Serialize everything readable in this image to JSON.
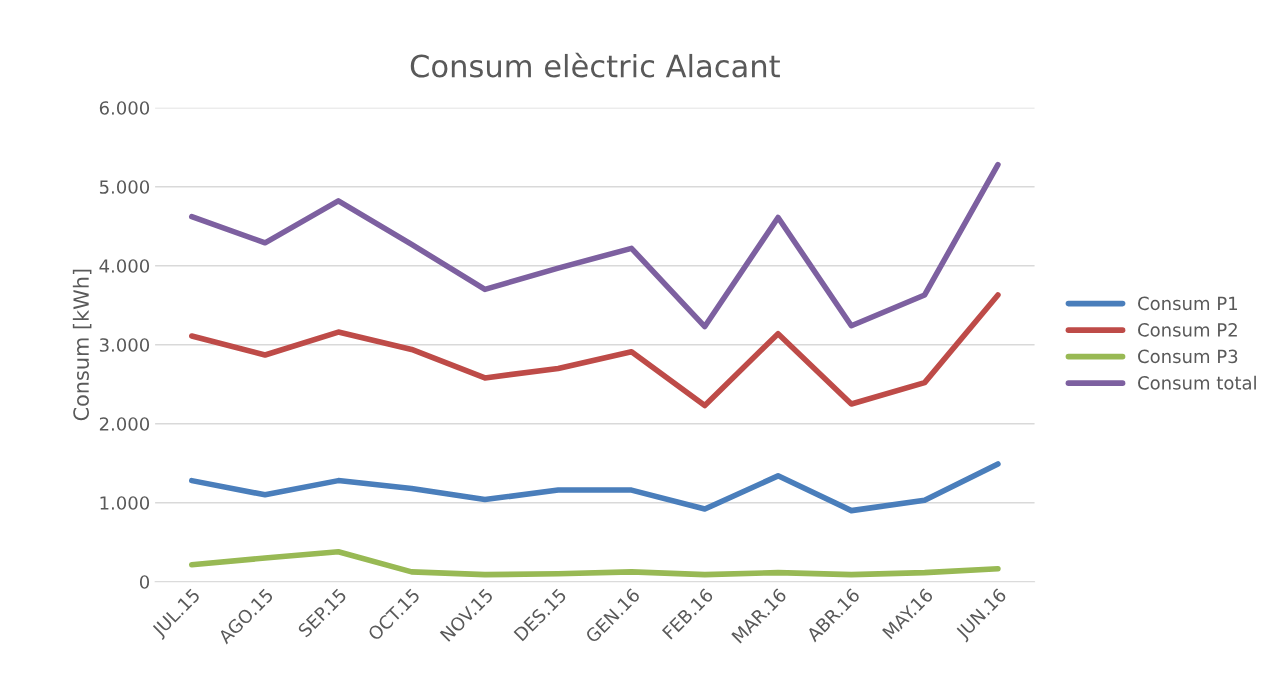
{
  "chart_data": {
    "type": "line",
    "title": "Consum elèctric Alacant",
    "ylabel": "Consum [kWh]",
    "categories": [
      "JUL.15",
      "AGO.15",
      "SEP.15",
      "OCT.15",
      "NOV.15",
      "DES.15",
      "GEN.16",
      "FEB.16",
      "MAR.16",
      "ABR.16",
      "MAY.16",
      "JUN.16"
    ],
    "series": [
      {
        "name": "Consum P1",
        "color": "#4a7ebb",
        "values": [
          1280,
          1100,
          1280,
          1180,
          1040,
          1160,
          1160,
          920,
          1340,
          900,
          1030,
          1490
        ]
      },
      {
        "name": "Consum P2",
        "color": "#be4b48",
        "values": [
          3110,
          2870,
          3160,
          2940,
          2580,
          2700,
          2910,
          2230,
          3140,
          2250,
          2520,
          3630
        ]
      },
      {
        "name": "Consum P3",
        "color": "#98b954",
        "values": [
          215,
          300,
          380,
          125,
          90,
          100,
          125,
          90,
          115,
          90,
          115,
          165
        ]
      },
      {
        "name": "Consum total",
        "color": "#7d60a0",
        "values": [
          4620,
          4290,
          4820,
          4270,
          3700,
          3970,
          4220,
          3230,
          4610,
          3240,
          3630,
          5280
        ]
      }
    ],
    "ylim": [
      0,
      6000
    ],
    "yticks": [
      0,
      {
        "value": 1000,
        "label": "1.000"
      },
      {
        "value": 2000,
        "label": "2.000"
      },
      {
        "value": 3000,
        "label": "3.000"
      },
      {
        "value": 4000,
        "label": "4.000"
      },
      {
        "value": 5000,
        "label": "5.000"
      },
      {
        "value": 6000,
        "label": "6.000"
      }
    ],
    "grid": "y",
    "legend": "right",
    "line_style": "solid",
    "marker": "none"
  }
}
